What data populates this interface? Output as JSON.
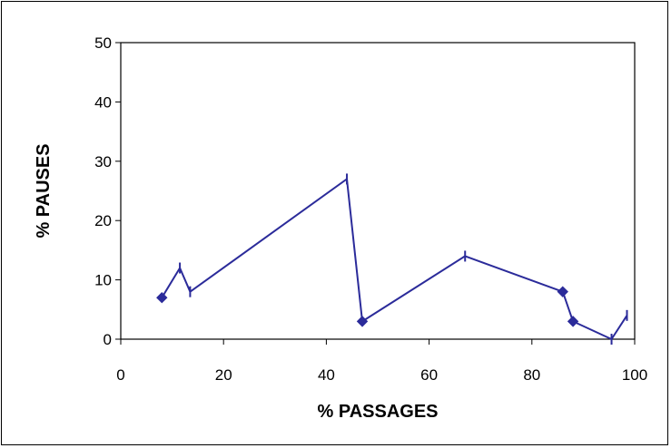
{
  "chart_data": {
    "type": "line",
    "title": "",
    "xlabel": "%  PASSAGES",
    "ylabel": "% PAUSES",
    "xlim": [
      0,
      100
    ],
    "ylim": [
      0,
      50
    ],
    "xticks": [
      0,
      20,
      40,
      60,
      80,
      100
    ],
    "yticks": [
      0,
      10,
      20,
      30,
      40,
      50
    ],
    "xtick_labels": [
      "0",
      "20",
      "40",
      "60",
      "80",
      "100"
    ],
    "ytick_labels": [
      "0",
      "10",
      "20",
      "30",
      "40",
      "50"
    ],
    "grid": false,
    "legend": "none",
    "series": [
      {
        "color": "#2b2b9a",
        "points": [
          {
            "x": 8,
            "y": 7,
            "marker": "diamond"
          },
          {
            "x": 11.5,
            "y": 12,
            "marker": "tick"
          },
          {
            "x": 13.5,
            "y": 8,
            "marker": "tick"
          },
          {
            "x": 44,
            "y": 27,
            "marker": "tick"
          },
          {
            "x": 47,
            "y": 3,
            "marker": "diamond"
          },
          {
            "x": 67,
            "y": 14,
            "marker": "tick"
          },
          {
            "x": 86,
            "y": 8,
            "marker": "diamond"
          },
          {
            "x": 88,
            "y": 3,
            "marker": "diamond"
          },
          {
            "x": 95.5,
            "y": 0,
            "marker": "tick"
          },
          {
            "x": 98.5,
            "y": 4,
            "marker": "tick"
          }
        ]
      }
    ]
  }
}
